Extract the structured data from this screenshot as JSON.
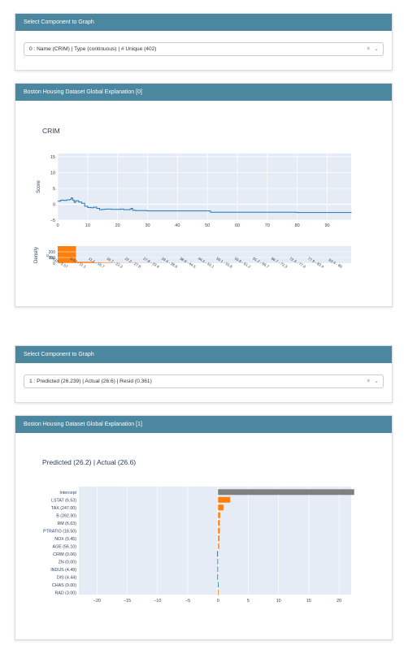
{
  "panel1": {
    "header": "Select Component to Graph",
    "select_value": "0 : Name (CRIM) | Type (continuous) | # Unique (402)",
    "clear_glyph": "×",
    "caret_glyph": "⌄"
  },
  "panel2": {
    "header": "Boston Housing Dataset Global Explanation [0]",
    "title": "CRIM",
    "score_label": "Score",
    "density_label": "Density",
    "score_y_ticks": [
      "15",
      "10",
      "5",
      "0",
      "−5"
    ],
    "score_x_ticks": [
      "0",
      "10",
      "20",
      "30",
      "40",
      "50",
      "60",
      "70",
      "80",
      "90"
    ],
    "density_y_ticks": [
      "200",
      "100",
      "0"
    ],
    "density_x_ticks": [
      "0.00632 - 5.57",
      "5.57 - 11.1",
      "11.1 - 16.7",
      "16.7 - 22.2",
      "22.2 - 27.8",
      "27.8 - 33.4",
      "33.4 - 38.9",
      "38.9 - 44.5",
      "44.5 - 50.1",
      "50.1 - 55.6",
      "55.6 - 61.2",
      "61.2 - 66.7",
      "66.7 - 72.3",
      "72.3 - 77.9",
      "77.9 - 83.4",
      "83.4 - 89"
    ]
  },
  "panel3": {
    "header": "Select Component to Graph",
    "select_value": "1 : Predicted (26.239) | Actual (26.6) | Resid (0.361)",
    "clear_glyph": "×",
    "caret_glyph": "⌄"
  },
  "panel4": {
    "header": "Boston Housing Dataset Global Explanation [1]",
    "title": "Predicted (26.2) | Actual (26.6)",
    "x_ticks": [
      "−20",
      "−15",
      "−10",
      "−5",
      "0",
      "5",
      "10",
      "15",
      "20"
    ]
  },
  "colors": {
    "header": "#4c87a0",
    "plot_bg": "#e5ecf6",
    "line": "#1f77b4",
    "orange": "#ff7f0e",
    "intercept": "#7f7f7f"
  },
  "chart_data": [
    {
      "type": "line",
      "title": "CRIM",
      "ylabel": "Score",
      "xlim": [
        0,
        98
      ],
      "ylim": [
        -5,
        16
      ],
      "x": [
        0,
        1,
        2,
        3,
        4,
        4.5,
        5,
        5.5,
        6,
        7,
        8,
        9,
        10,
        11,
        12,
        13,
        14,
        15,
        16,
        18,
        20,
        21,
        22,
        23,
        24,
        24.5,
        25,
        26,
        28,
        30,
        35,
        40,
        45,
        50,
        51,
        55,
        60,
        70,
        80,
        90,
        98
      ],
      "y": [
        1.0,
        1.3,
        1.2,
        1.4,
        1.5,
        2.0,
        1.3,
        0.6,
        1.1,
        0.7,
        0.3,
        -0.6,
        -1.0,
        -1.1,
        -0.9,
        -1.3,
        -1.7,
        -1.6,
        -1.5,
        -1.6,
        -1.6,
        -1.5,
        -1.7,
        -1.7,
        -1.6,
        -1.3,
        -1.9,
        -2.0,
        -2.0,
        -2.1,
        -2.1,
        -2.1,
        -2.1,
        -2.1,
        -2.5,
        -2.5,
        -2.5,
        -2.5,
        -2.6,
        -2.6,
        -2.7
      ]
    },
    {
      "type": "bar",
      "ylabel": "Density",
      "ylim": [
        0,
        300
      ],
      "categories": [
        "0.00632 - 5.57",
        "5.57 - 11.1",
        "11.1 - 16.7",
        "16.7 - 22.2",
        "22.2 - 27.8",
        "27.8 - 33.4",
        "33.4 - 38.9",
        "38.9 - 44.5",
        "44.5 - 50.1",
        "50.1 - 55.6",
        "55.6 - 61.2",
        "61.2 - 66.7",
        "66.7 - 72.3",
        "72.3 - 77.9",
        "77.9 - 83.4",
        "83.4 - 89"
      ],
      "values": [
        300,
        25,
        12,
        6,
        5,
        3,
        2,
        1,
        1,
        1,
        1,
        1,
        1,
        1,
        1,
        1
      ]
    },
    {
      "type": "bar",
      "orientation": "horizontal",
      "title": "Predicted (26.2) | Actual (26.6)",
      "xlim": [
        -23,
        22
      ],
      "categories": [
        "Intercept",
        "LSTAT (6.53)",
        "TAX (247.00)",
        "B (392.30)",
        "RM (6.63)",
        "PTRATIO (18.50)",
        "NOX (0.45)",
        "AGE (56.10)",
        "CRIM (0.06)",
        "ZN (0.00)",
        "INDUS (4.49)",
        "DIS (4.44)",
        "CHAS (0.00)",
        "RAD (3.00)"
      ],
      "values": [
        22.5,
        2.0,
        0.9,
        0.35,
        0.3,
        0.3,
        0.25,
        0.2,
        -0.15,
        -0.1,
        -0.1,
        -0.12,
        -0.03,
        0.02
      ]
    }
  ]
}
